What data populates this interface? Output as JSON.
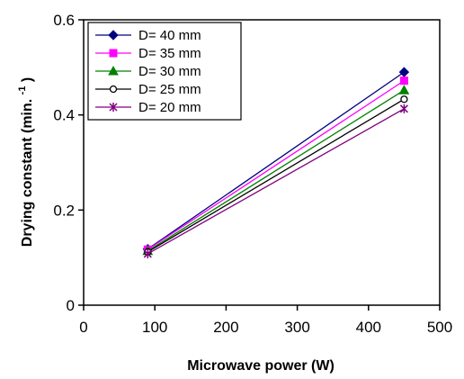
{
  "chart_data": {
    "type": "line",
    "title": "",
    "xlabel": "Microwave power (W)",
    "ylabel_main": "Drying constant (min.",
    "ylabel_sup": "-1",
    "ylabel_close": ")",
    "xlim": [
      0,
      500
    ],
    "ylim": [
      0,
      0.6
    ],
    "xticks": [
      0,
      100,
      200,
      300,
      400,
      500
    ],
    "xtick_labels": [
      "0",
      "100",
      "200",
      "300",
      "400",
      "500"
    ],
    "yticks": [
      0,
      0.2,
      0.4,
      0.6
    ],
    "ytick_labels": [
      "0",
      "0.2",
      "0.4",
      "0.6"
    ],
    "grid": false,
    "legend_position": "top-left",
    "x": [
      90,
      450
    ],
    "series": [
      {
        "name": "D= 40 mm",
        "values": [
          0.118,
          0.49
        ],
        "color": "#000080",
        "marker": "diamond"
      },
      {
        "name": "D= 35 mm",
        "values": [
          0.117,
          0.472
        ],
        "color": "#ff00ff",
        "marker": "square"
      },
      {
        "name": "D= 30 mm",
        "values": [
          0.114,
          0.452
        ],
        "color": "#008000",
        "marker": "triangle"
      },
      {
        "name": "D= 25 mm",
        "values": [
          0.112,
          0.433
        ],
        "color": "#000000",
        "marker": "open-circle"
      },
      {
        "name": "D= 20 mm",
        "values": [
          0.108,
          0.413
        ],
        "color": "#800080",
        "marker": "star"
      }
    ]
  }
}
